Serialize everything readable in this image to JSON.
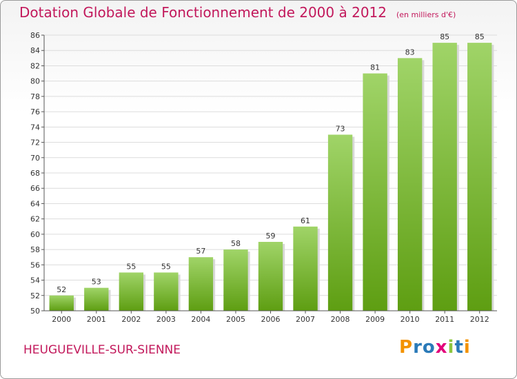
{
  "chart_data": {
    "type": "bar",
    "title": "Dotation Globale de Fonctionnement de 2000 à 2012",
    "subtitle": "(en milliers d'€)",
    "categories": [
      "2000",
      "2001",
      "2002",
      "2003",
      "2004",
      "2005",
      "2006",
      "2007",
      "2008",
      "2009",
      "2010",
      "2011",
      "2012"
    ],
    "values": [
      52,
      53,
      55,
      55,
      57,
      58,
      59,
      61,
      73,
      81,
      83,
      85,
      85
    ],
    "ylim": [
      50,
      86
    ],
    "ytick_step": 2,
    "xlabel": "",
    "ylabel": "",
    "grid": true
  },
  "location": "HEUGUEVILLE-SUR-SIENNE",
  "logo": {
    "letters": [
      "P",
      "r",
      "o",
      "x",
      "i",
      "t",
      "i"
    ],
    "colors": [
      "#f39200",
      "#2a7ab8",
      "#2a7ab8",
      "#e2007a",
      "#8cc63f",
      "#2a7ab8",
      "#f39200"
    ]
  },
  "colors": {
    "bar_top": "#a0d468",
    "bar_bottom": "#5e9e12",
    "title": "#c2185b"
  }
}
